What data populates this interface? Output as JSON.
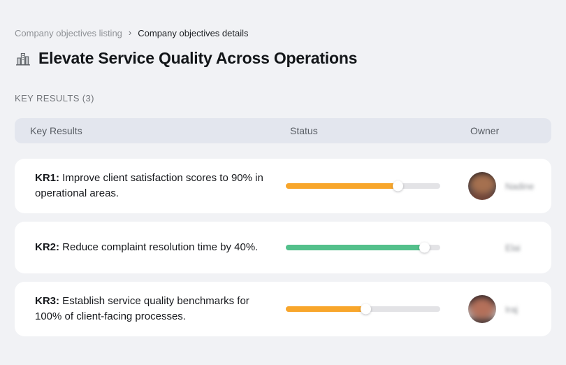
{
  "breadcrumb": {
    "separator": "›",
    "items": [
      {
        "label": "Company objectives listing"
      },
      {
        "label": "Company objectives details"
      }
    ]
  },
  "page": {
    "title": "Elevate Service Quality Across Operations",
    "title_icon": "buildings-icon",
    "section_label": "KEY RESULTS (3)"
  },
  "table": {
    "headers": {
      "key_results": "Key Results",
      "status": "Status",
      "owner": "Owner"
    },
    "rows": [
      {
        "kr_label": "KR1:",
        "kr_text": " Improve client satisfaction scores to 90% in operational areas.",
        "progress_percent": 73,
        "progress_color": "#F8A62B",
        "owner_name": "Nadine"
      },
      {
        "kr_label": "KR2:",
        "kr_text": " Reduce complaint resolution time by 40%.",
        "progress_percent": 90,
        "progress_color": "#53C08B",
        "owner_name": "Elai"
      },
      {
        "kr_label": "KR3:",
        "kr_text": " Establish service quality benchmarks for 100% of client-facing processes.",
        "progress_percent": 52,
        "progress_color": "#F8A62B",
        "owner_name": "Iraj"
      }
    ]
  },
  "colors": {
    "page_background": "#F1F2F5",
    "card_background": "#FFFFFF",
    "header_background": "#E3E6EE",
    "progress_track": "#E3E3E6",
    "accent_orange": "#F8A62B",
    "accent_green": "#53C08B"
  }
}
